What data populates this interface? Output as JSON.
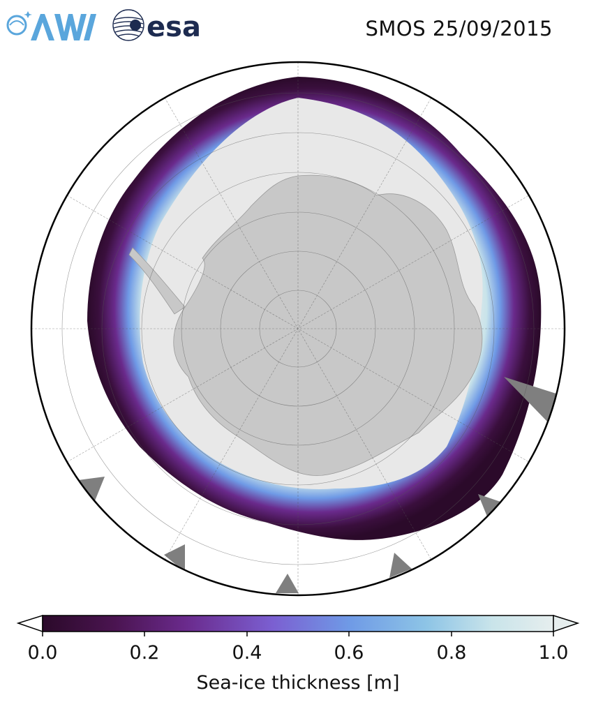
{
  "header": {
    "title": "SMOS 25/09/2015",
    "logos": [
      {
        "name": "awi-logo",
        "text": "AWI",
        "color": "#5aa6dc"
      },
      {
        "name": "esa-logo",
        "text": "esa",
        "color": "#1d2b50"
      }
    ]
  },
  "map": {
    "projection": "south-polar-stereographic",
    "land_color": "#c8c8c8",
    "open_water_color": "#ffffff",
    "thick_ice_color": "#e8e8e8",
    "missing_data_color": "#7f7f7f",
    "graticule": "dashed meridians every 30°, parallels every 10°"
  },
  "colorbar": {
    "label": "Sea-ice thickness [m]",
    "ticks": [
      "0.0",
      "0.2",
      "0.4",
      "0.6",
      "0.8",
      "1.0"
    ],
    "range": [
      0.0,
      1.0
    ],
    "extend": "both",
    "colormap": [
      "#2b0a2a",
      "#4a1450",
      "#6a2a8c",
      "#7b5fd1",
      "#6f9ae6",
      "#8dc4e6",
      "#c9e4ea",
      "#e6eeee"
    ]
  }
}
